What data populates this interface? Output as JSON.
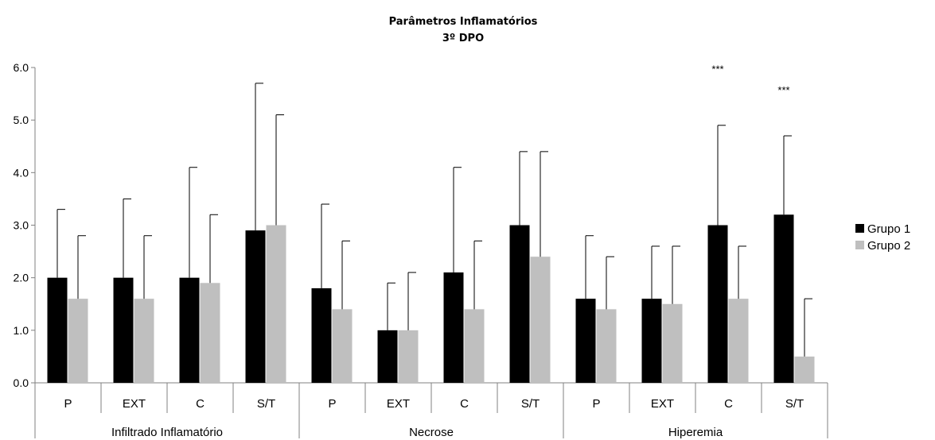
{
  "chart_data": {
    "type": "bar",
    "title": "Parâmetros Inflamatórios",
    "subtitle": "3º DPO",
    "ylim": [
      0,
      6
    ],
    "yticks": [
      "0.0",
      "1.0",
      "2.0",
      "3.0",
      "4.0",
      "5.0",
      "6.0"
    ],
    "grid": false,
    "legend_position": "right",
    "groups": [
      {
        "label": "Infiltrado Inflamatório",
        "categories": [
          "P",
          "EXT",
          "C",
          "S/T"
        ]
      },
      {
        "label": "Necrose",
        "categories": [
          "P",
          "EXT",
          "C",
          "S/T"
        ]
      },
      {
        "label": "Hiperemia",
        "categories": [
          "P",
          "EXT",
          "C",
          "S/T"
        ]
      }
    ],
    "series": [
      {
        "name": "Grupo 1",
        "color": "#000000",
        "values": [
          2.0,
          2.0,
          2.0,
          2.9,
          1.8,
          1.0,
          2.1,
          3.0,
          1.6,
          1.6,
          3.0,
          3.2
        ],
        "error_upper": [
          3.3,
          3.5,
          4.1,
          5.7,
          3.4,
          1.9,
          4.1,
          4.4,
          2.8,
          2.6,
          4.9,
          4.7
        ]
      },
      {
        "name": "Grupo 2",
        "color": "#bfbfbf",
        "values": [
          1.6,
          1.6,
          1.9,
          3.0,
          1.4,
          1.0,
          1.4,
          2.4,
          1.4,
          1.5,
          1.6,
          0.5
        ],
        "error_upper": [
          2.8,
          2.8,
          3.2,
          5.1,
          2.7,
          2.1,
          2.7,
          4.4,
          2.4,
          2.6,
          2.6,
          1.6
        ]
      }
    ],
    "annotations": [
      {
        "category_index": 10,
        "text": "***",
        "y": 5.9
      },
      {
        "category_index": 11,
        "text": "***",
        "y": 5.5
      }
    ]
  }
}
